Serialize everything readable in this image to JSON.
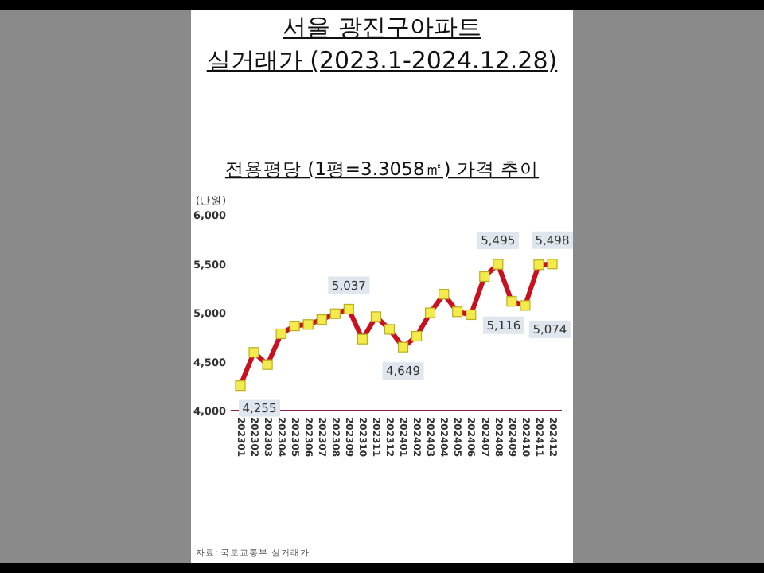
{
  "chart_data": {
    "type": "line",
    "title": "서울 광진구아파트\n실거래가 (2023.1-2024.12.28)",
    "subtitle": "전용평당 (1평=3.3058㎡) 가격 추이",
    "ylabel": "(만원)",
    "categories": [
      "202301",
      "202302",
      "202303",
      "202304",
      "202305",
      "202306",
      "202307",
      "202308",
      "202309",
      "202310",
      "202311",
      "202312",
      "202401",
      "202402",
      "202403",
      "202404",
      "202405",
      "202406",
      "202407",
      "202408",
      "202409",
      "202410",
      "202411",
      "202412"
    ],
    "series": [
      {
        "color": "#c8101e",
        "values": [
          4255,
          4595,
          4470,
          4785,
          4865,
          4880,
          4930,
          4990,
          5037,
          4730,
          4960,
          4830,
          4649,
          4760,
          5000,
          5190,
          5010,
          4980,
          5370,
          5495,
          5116,
          5074,
          5490,
          5498
        ],
        "value_labels": [
          "4,255",
          null,
          null,
          null,
          null,
          null,
          null,
          null,
          "5,037",
          null,
          null,
          null,
          "4,649",
          null,
          null,
          null,
          null,
          null,
          null,
          "5,495",
          "5,116",
          "5,074",
          null,
          "5,498"
        ]
      }
    ],
    "ylim": [
      4000,
      6000
    ],
    "yticks": [
      {
        "value": 4000,
        "label": "4,000"
      },
      {
        "value": 4500,
        "label": "4,500"
      },
      {
        "value": 5000,
        "label": "5,000"
      },
      {
        "value": 5500,
        "label": "5,500"
      },
      {
        "value": 6000,
        "label": "6,000"
      }
    ],
    "marker": "square",
    "grid": false,
    "annotations": [
      "자료: 국토교통부 실거래가"
    ]
  }
}
